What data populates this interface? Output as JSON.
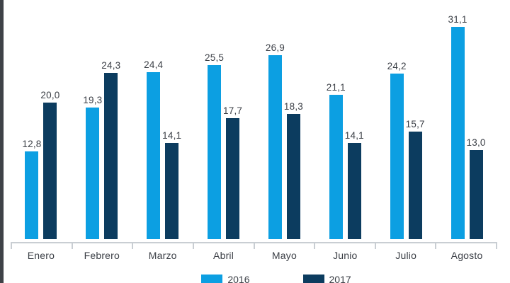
{
  "chart_data": {
    "type": "bar",
    "title": "",
    "xlabel": "",
    "ylabel": "",
    "categories": [
      "Enero",
      "Febrero",
      "Marzo",
      "Abril",
      "Mayo",
      "Junio",
      "Julio",
      "Agosto"
    ],
    "series": [
      {
        "name": "2016",
        "values": [
          12.8,
          19.3,
          24.4,
          25.5,
          26.9,
          21.1,
          24.2,
          31.1
        ]
      },
      {
        "name": "2017",
        "values": [
          20.0,
          24.3,
          14.1,
          17.7,
          18.3,
          14.1,
          15.7,
          13.0
        ]
      }
    ],
    "value_labels": [
      [
        "12,8",
        "19,3",
        "24,4",
        "25,5",
        "26,9",
        "21,1",
        "24,2",
        "31,1"
      ],
      [
        "20,0",
        "24,3",
        "14,1",
        "17,7",
        "18,3",
        "14,1",
        "15,7",
        "13,0"
      ]
    ],
    "series_colors": [
      "#0c9fe2",
      "#0c3c5f"
    ],
    "decimal_separator": ",",
    "ylim": [
      0,
      35
    ],
    "grid": false,
    "axis_color": "#c9ced3",
    "text_color": "#3b3f46",
    "legend_position": "bottom-center",
    "legend": [
      {
        "label": "2016",
        "color": "#0c9fe2"
      },
      {
        "label": "2017",
        "color": "#0c3c5f"
      }
    ]
  }
}
